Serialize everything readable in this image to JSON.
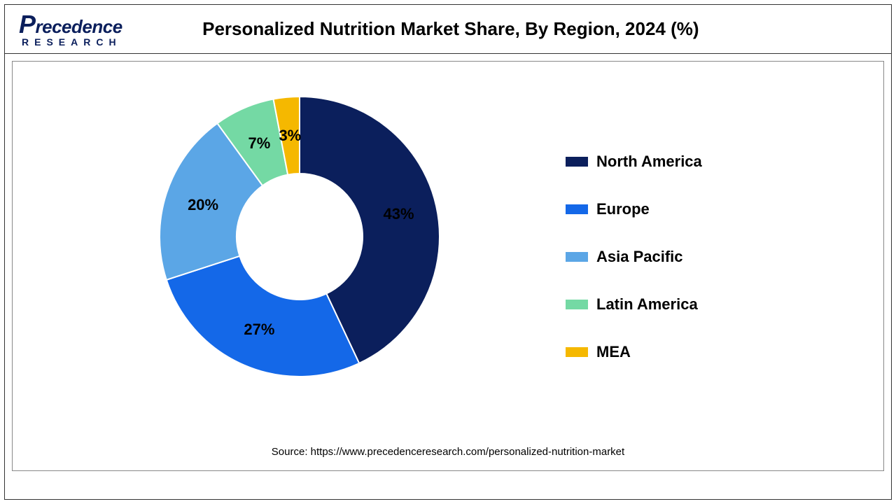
{
  "logo": {
    "line1": "Precedence",
    "line2": "RESEARCH"
  },
  "title": "Personalized Nutrition Market Share, By Region, 2024 (%)",
  "source": "Source: https://www.precedenceresearch.com/personalized-nutrition-market",
  "chart": {
    "type": "donut",
    "background_color": "#ffffff",
    "inner_radius_ratio": 0.45,
    "outer_radius": 200,
    "start_angle_deg": 0,
    "label_fontsize": 22,
    "label_fontweight": "bold",
    "label_color": "#000000",
    "slices": [
      {
        "name": "North America",
        "value": 43,
        "color": "#0b1f5c",
        "label": "43%"
      },
      {
        "name": "Europe",
        "value": 27,
        "color": "#1468e8",
        "label": "27%"
      },
      {
        "name": "Asia Pacific",
        "value": 20,
        "color": "#5ba6e6",
        "label": "20%"
      },
      {
        "name": "Latin America",
        "value": 7,
        "color": "#74d9a4",
        "label": "7%"
      },
      {
        "name": "MEA",
        "value": 3,
        "color": "#f5b800",
        "label": "3%"
      }
    ]
  },
  "legend": {
    "fontsize": 22,
    "fontweight": "bold",
    "swatch_width": 32,
    "swatch_height": 14,
    "items": [
      {
        "label": "North America",
        "color": "#0b1f5c"
      },
      {
        "label": "Europe",
        "color": "#1468e8"
      },
      {
        "label": "Asia Pacific",
        "color": "#5ba6e6"
      },
      {
        "label": "Latin America",
        "color": "#74d9a4"
      },
      {
        "label": "MEA",
        "color": "#f5b800"
      }
    ]
  }
}
